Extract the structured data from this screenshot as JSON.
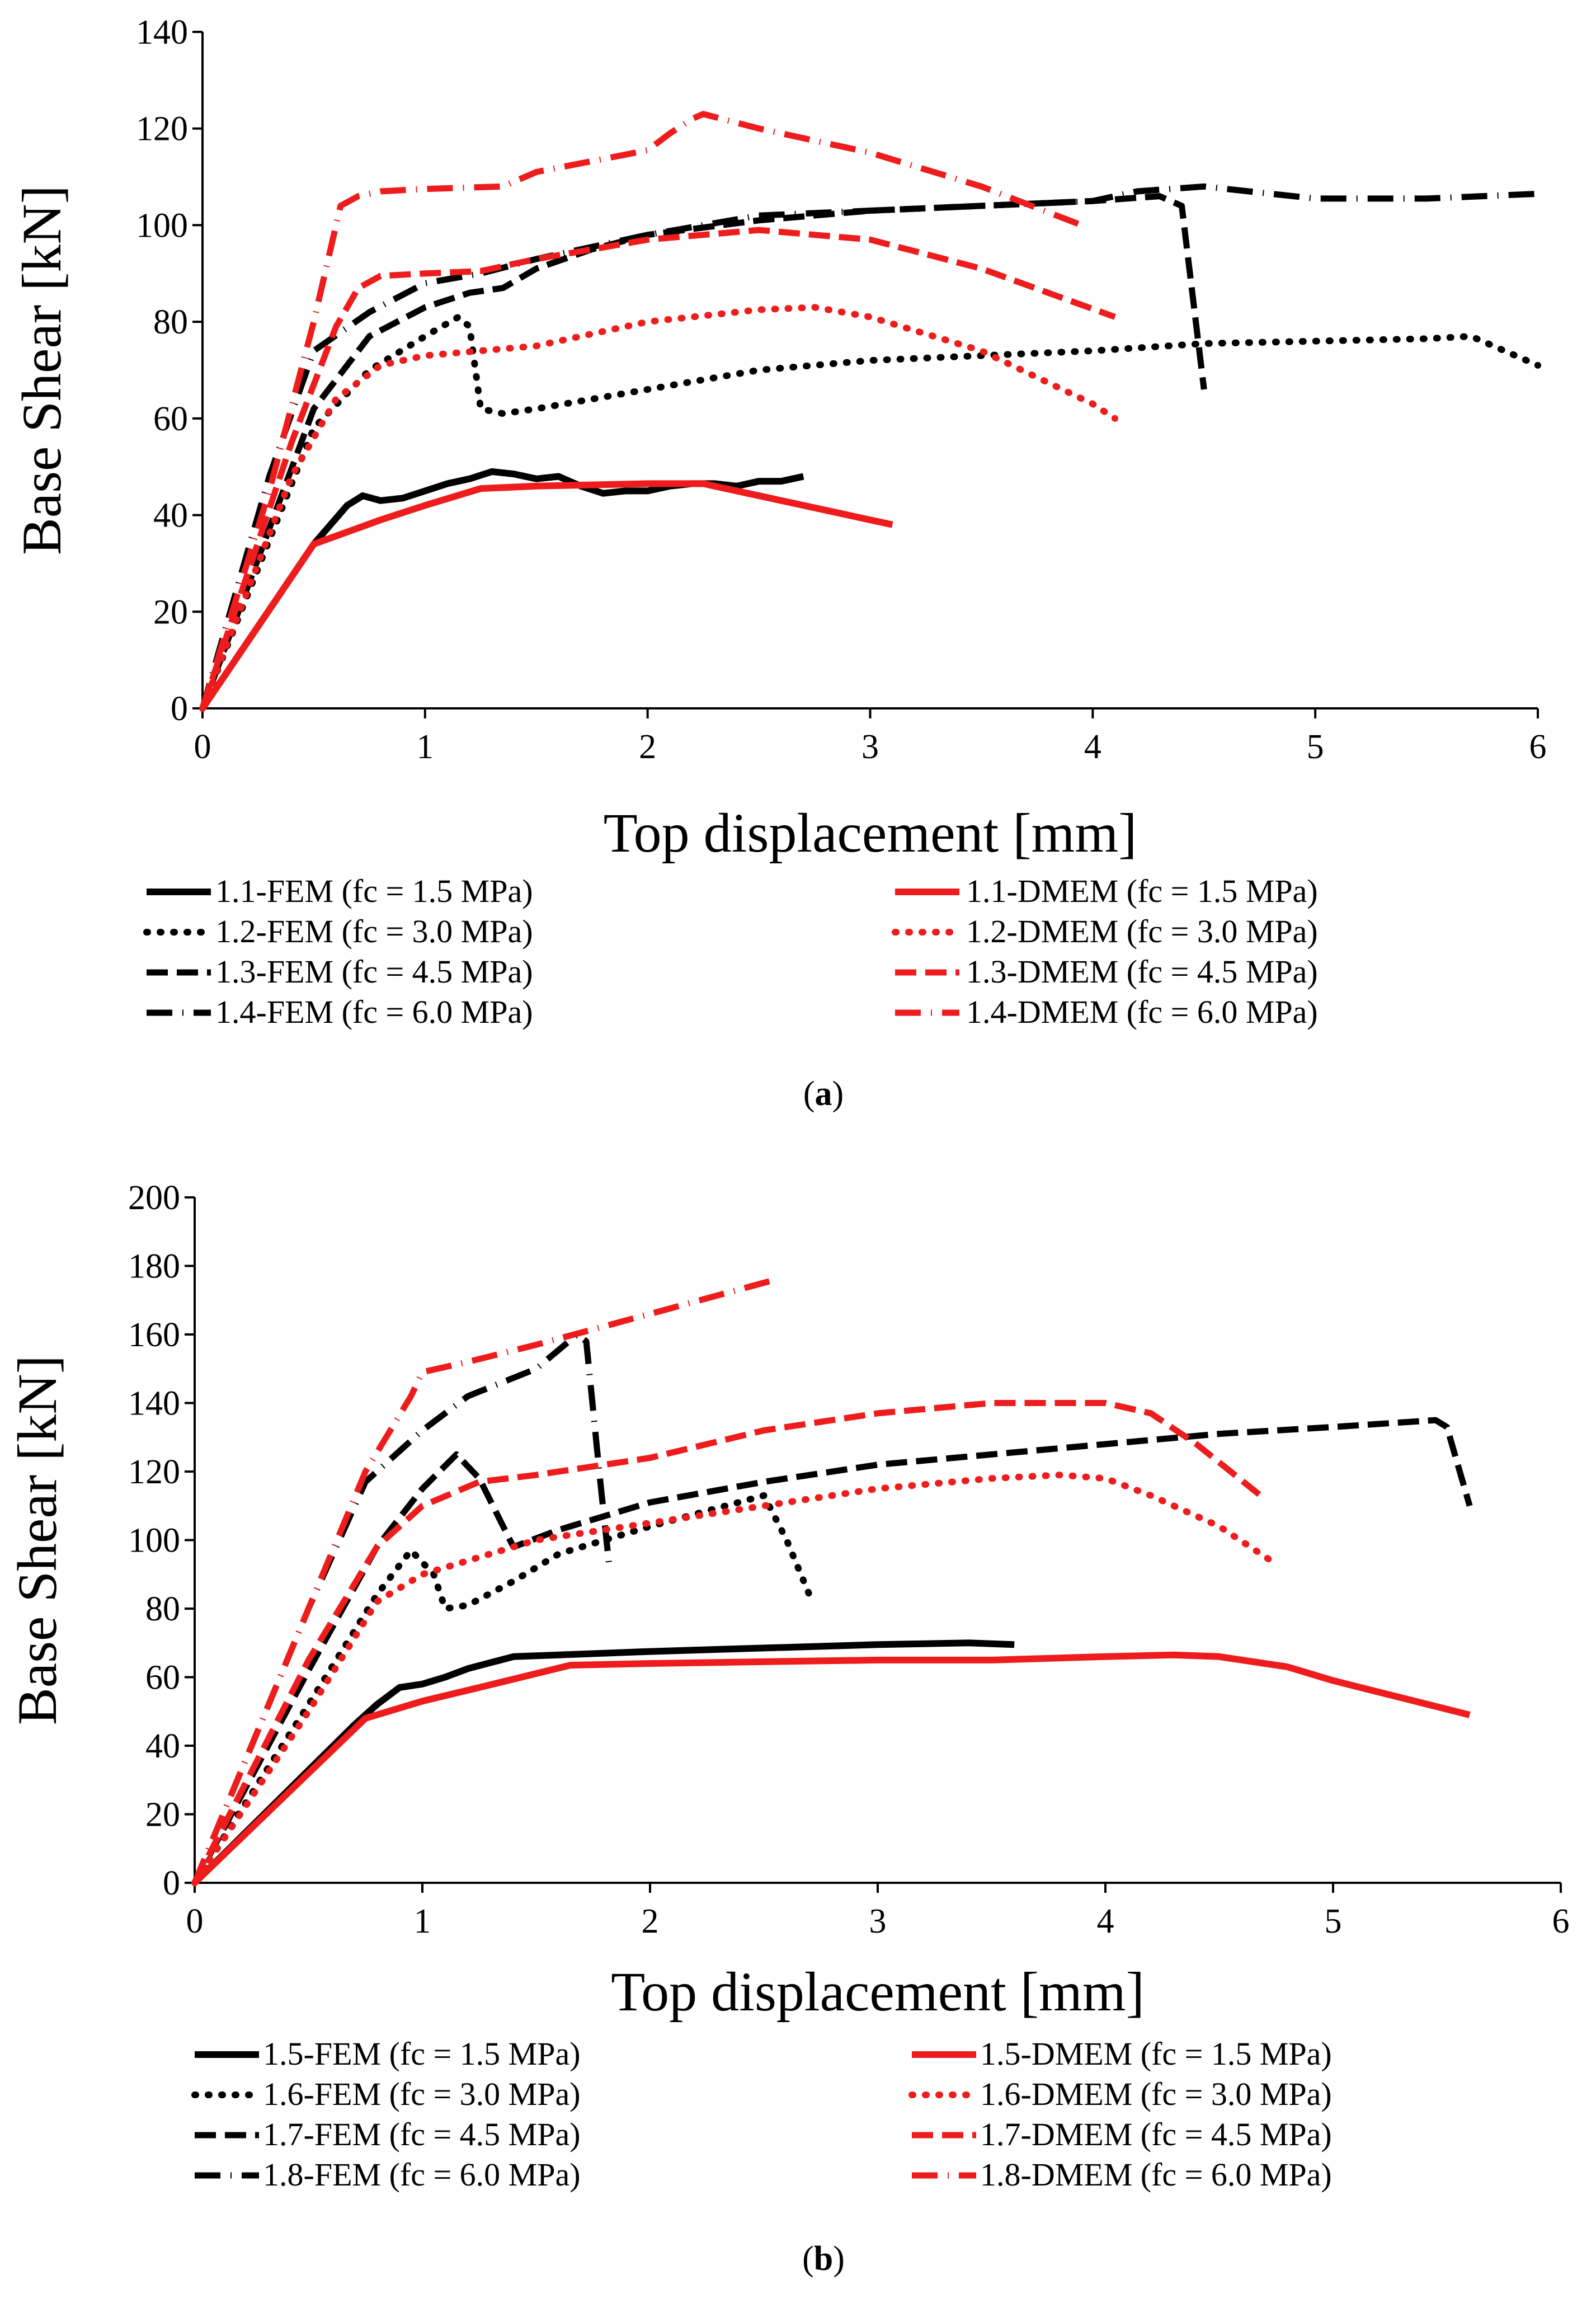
{
  "chart_data": [
    {
      "type": "line",
      "panel_label": "a",
      "xlabel": "Top displacement [mm]",
      "ylabel": "Base Shear [kN]",
      "xlim": [
        0,
        6
      ],
      "ylim": [
        0,
        140
      ],
      "xticks": [
        0,
        1,
        2,
        3,
        4,
        5,
        6
      ],
      "yticks": [
        0,
        20,
        40,
        60,
        80,
        100,
        120,
        140
      ],
      "grid": false,
      "legend_position": "bottom",
      "series": [
        {
          "name": "1.1-FEM (fc = 1.5 MPa)",
          "color": "#000000",
          "dash": "solid",
          "x": [
            0,
            0.5,
            0.65,
            0.72,
            0.8,
            0.9,
            1.0,
            1.1,
            1.2,
            1.3,
            1.4,
            1.5,
            1.6,
            1.7,
            1.8,
            1.9,
            2.0,
            2.1,
            2.2,
            2.3,
            2.4,
            2.5,
            2.6,
            2.7
          ],
          "y": [
            0,
            34,
            42,
            44,
            43,
            43.5,
            45,
            46.5,
            47.5,
            49,
            48.5,
            47.5,
            48,
            46,
            44.5,
            45,
            45,
            46,
            46.5,
            46.5,
            46,
            47,
            47,
            48
          ]
        },
        {
          "name": "1.2-FEM (fc = 3.0 MPa)",
          "color": "#000000",
          "dash": "dot",
          "x": [
            0,
            0.5,
            0.75,
            1.0,
            1.15,
            1.2,
            1.25,
            1.35,
            1.5,
            2.0,
            2.5,
            3.0,
            3.5,
            4.0,
            4.5,
            5.0,
            5.5,
            5.7,
            5.85,
            6.0
          ],
          "y": [
            0,
            58,
            70,
            77,
            81,
            79,
            62,
            61,
            62,
            66,
            70,
            72,
            73,
            74,
            75.5,
            76,
            76.5,
            77,
            74,
            71
          ]
        },
        {
          "name": "1.3-FEM (fc = 4.5 MPa)",
          "color": "#000000",
          "dash": "dash",
          "x": [
            0,
            0.5,
            0.75,
            1.0,
            1.2,
            1.35,
            1.5,
            1.75,
            2.0,
            2.5,
            3.0,
            3.5,
            4.0,
            4.3,
            4.4,
            4.5
          ],
          "y": [
            0,
            62,
            77,
            83,
            86,
            87,
            91,
            95,
            98,
            101,
            103,
            104,
            105,
            106,
            104,
            66
          ]
        },
        {
          "name": "1.4-FEM (fc = 6.0 MPa)",
          "color": "#000000",
          "dash": "dashdot",
          "x": [
            0,
            0.3,
            0.5,
            0.75,
            1.0,
            1.25,
            1.5,
            2.0,
            2.5,
            3.0,
            3.5,
            4.0,
            4.2,
            4.5,
            5.0,
            5.5,
            6.0
          ],
          "y": [
            0,
            48,
            74,
            82,
            88,
            90,
            93,
            98,
            102,
            103,
            104,
            105,
            107,
            108,
            105.5,
            105.5,
            106.5
          ]
        },
        {
          "name": "1.1-DMEM (fc = 1.5 MPa)",
          "color": "#ee1c1c",
          "dash": "solid",
          "x": [
            0,
            0.5,
            0.8,
            1.0,
            1.25,
            1.5,
            2.0,
            2.25,
            2.5,
            3.1
          ],
          "y": [
            0,
            34,
            39,
            42,
            45.5,
            46,
            46.5,
            46.5,
            44,
            38
          ]
        },
        {
          "name": "1.2-DMEM (fc = 3.0 MPa)",
          "color": "#ee1c1c",
          "dash": "dot",
          "x": [
            0,
            0.4,
            0.6,
            0.8,
            1.0,
            1.5,
            2.0,
            2.5,
            2.75,
            3.0,
            3.5,
            4.0,
            4.1
          ],
          "y": [
            0,
            48,
            64,
            71,
            73,
            75,
            80,
            82.5,
            83,
            81,
            74,
            63,
            60
          ]
        },
        {
          "name": "1.3-DMEM (fc = 4.5 MPa)",
          "color": "#ee1c1c",
          "dash": "dash",
          "x": [
            0,
            0.4,
            0.6,
            0.7,
            0.8,
            1.0,
            1.25,
            1.5,
            2.0,
            2.5,
            3.0,
            3.5,
            4.1
          ],
          "y": [
            0,
            55,
            79,
            87,
            89.5,
            90,
            90.5,
            93,
            97,
            99,
            97,
            91,
            81
          ]
        },
        {
          "name": "1.4-DMEM (fc = 6.0 MPa)",
          "color": "#ee1c1c",
          "dash": "dashdot",
          "x": [
            0,
            0.3,
            0.5,
            0.62,
            0.7,
            0.8,
            1.0,
            1.35,
            1.5,
            2.0,
            2.1,
            2.2,
            2.25,
            2.5,
            3.0,
            3.5,
            3.95
          ],
          "y": [
            0,
            45,
            80,
            104,
            106,
            107,
            107.5,
            108,
            111,
            115.5,
            119,
            122,
            123,
            120,
            115,
            108,
            100
          ]
        }
      ]
    },
    {
      "type": "line",
      "panel_label": "b",
      "xlabel": "Top displacement  [mm]",
      "ylabel": "Base Shear  [kN]",
      "xlim": [
        0,
        6
      ],
      "ylim": [
        0,
        200
      ],
      "xticks": [
        0,
        1,
        2,
        3,
        4,
        5,
        6
      ],
      "yticks": [
        0,
        20,
        40,
        60,
        80,
        100,
        120,
        140,
        160,
        180,
        200
      ],
      "grid": false,
      "legend_position": "bottom",
      "series": [
        {
          "name": "1.5-FEM (fc = 1.5 MPa)",
          "color": "#000000",
          "dash": "solid",
          "x": [
            0,
            0.7,
            0.8,
            0.9,
            1.0,
            1.1,
            1.2,
            1.4,
            1.6,
            2.0,
            2.5,
            3.0,
            3.4,
            3.6
          ],
          "y": [
            0,
            46,
            52,
            57,
            58,
            60,
            62.5,
            66,
            66.5,
            67.5,
            68.5,
            69.5,
            70,
            69.5
          ]
        },
        {
          "name": "1.6-FEM (fc = 3.0 MPa)",
          "color": "#000000",
          "dash": "dot",
          "x": [
            0,
            0.5,
            0.8,
            0.95,
            1.05,
            1.1,
            1.2,
            1.4,
            1.6,
            2.0,
            2.5,
            2.6,
            2.7
          ],
          "y": [
            0,
            52,
            84,
            97,
            90,
            80,
            81,
            88,
            96,
            104,
            113,
            100,
            84
          ]
        },
        {
          "name": "1.7-FEM (fc = 4.5 MPa)",
          "color": "#000000",
          "dash": "dash",
          "x": [
            0,
            0.5,
            0.8,
            1.0,
            1.15,
            1.25,
            1.4,
            1.6,
            2.0,
            2.5,
            3.0,
            3.5,
            4.0,
            4.5,
            5.0,
            5.45,
            5.5,
            5.6
          ],
          "y": [
            0,
            62,
            98,
            115,
            125,
            118,
            98,
            103,
            111,
            117,
            122,
            125,
            128,
            131,
            133,
            135,
            133,
            110
          ]
        },
        {
          "name": "1.8-FEM (fc = 6.0 MPa)",
          "color": "#000000",
          "dash": "dashdot",
          "x": [
            0,
            0.5,
            0.75,
            1.0,
            1.2,
            1.5,
            1.68,
            1.72,
            1.78,
            1.82
          ],
          "y": [
            0,
            80,
            117,
            132,
            142,
            150,
            160,
            158,
            118,
            93
          ]
        },
        {
          "name": "1.5-DMEM (fc = 1.5 MPa)",
          "color": "#ee1c1c",
          "dash": "solid",
          "x": [
            0,
            0.75,
            1.0,
            1.25,
            1.65,
            2.0,
            2.5,
            3.0,
            3.5,
            4.0,
            4.3,
            4.5,
            4.8,
            5.0,
            5.6
          ],
          "y": [
            0,
            48,
            53,
            57,
            63.5,
            64,
            64.5,
            65,
            65,
            66,
            66.5,
            66,
            63,
            59,
            49
          ]
        },
        {
          "name": "1.6-DMEM (fc = 3.0 MPa)",
          "color": "#ee1c1c",
          "dash": "dot",
          "x": [
            0,
            0.5,
            0.8,
            1.0,
            1.5,
            2.0,
            2.5,
            3.0,
            3.5,
            3.8,
            4.0,
            4.2,
            4.5,
            4.75
          ],
          "y": [
            0,
            50,
            82,
            90,
            100,
            105,
            110,
            115,
            118,
            119,
            118,
            113,
            104,
            93
          ]
        },
        {
          "name": "1.7-DMEM (fc = 4.5 MPa)",
          "color": "#ee1c1c",
          "dash": "dash",
          "x": [
            0,
            0.5,
            0.8,
            1.0,
            1.25,
            1.5,
            2.0,
            2.5,
            3.0,
            3.5,
            4.0,
            4.2,
            4.4,
            4.7
          ],
          "y": [
            0,
            65,
            98,
            110,
            117,
            119,
            124,
            132,
            137,
            140,
            140,
            137,
            128,
            112
          ]
        },
        {
          "name": "1.8-DMEM (fc = 6.0 MPa)",
          "color": "#ee1c1c",
          "dash": "dashdot",
          "x": [
            0,
            0.5,
            0.75,
            0.95,
            1.0,
            1.2,
            1.5,
            2.0,
            2.55
          ],
          "y": [
            0,
            80,
            120,
            142,
            149,
            152,
            157,
            166,
            176
          ]
        }
      ]
    }
  ],
  "colors": {
    "fem": "#000000",
    "dmem": "#ee1c1c",
    "axis": "#000000"
  }
}
